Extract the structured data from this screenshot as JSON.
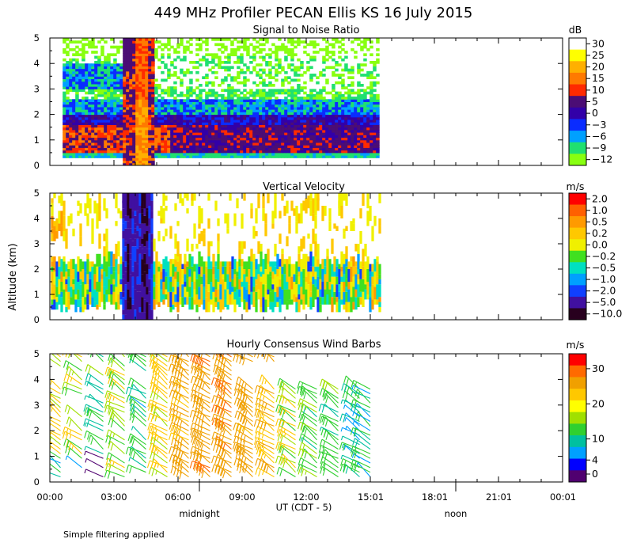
{
  "title": "449 MHz Profiler PECAN Ellis KS 16 July 2015",
  "y_axis_label": "Altitude (km)",
  "x_axis_label": "UT  (CDT - 5)",
  "x_ticks": [
    "00:00",
    "03:00",
    "06:00",
    "09:00",
    "12:00",
    "15:01",
    "18:01",
    "21:01",
    "00:01"
  ],
  "x_tick_hours": [
    0,
    3,
    6,
    9,
    12,
    15.02,
    18.02,
    21.02,
    24.02
  ],
  "markers": [
    {
      "label": "midnight",
      "hour": 7.0
    },
    {
      "label": "noon",
      "hour": 19.0
    }
  ],
  "footnote": "Simple filtering applied",
  "chart_data": [
    {
      "type": "heatmap",
      "title": "Signal to Noise Ratio",
      "unit": "dB",
      "x_range_hours": [
        0,
        24
      ],
      "data_extent_hours": [
        0.6,
        15.4
      ],
      "ylim_km": [
        0,
        5
      ],
      "y_ticks": [
        "0",
        "1",
        "2",
        "3",
        "4",
        "5"
      ],
      "colorbar_labels": [
        "30",
        "25",
        "20",
        "15",
        "10",
        "5",
        "0",
        "−3",
        "−6",
        "−9",
        "−12"
      ],
      "colors": [
        "#ffffff",
        "#ffff00",
        "#ffb000",
        "#ff7a00",
        "#ff2a00",
        "#4b0d75",
        "#3200a8",
        "#0a2cff",
        "#00a0ff",
        "#20e070",
        "#88ff10"
      ],
      "features": [
        {
          "description": "strong return column",
          "hour_range": [
            3.3,
            4.8
          ],
          "km_range": [
            0.3,
            5.0
          ],
          "dB": 10
        },
        {
          "description": "boundary layer high SNR",
          "hour_range": [
            0.6,
            15.4
          ],
          "km_range": [
            0.3,
            1.8
          ],
          "dB": 3
        }
      ]
    },
    {
      "type": "heatmap",
      "title": "Vertical Velocity",
      "unit": "m/s",
      "x_range_hours": [
        0,
        24
      ],
      "data_extent_hours": [
        0.6,
        15.4
      ],
      "ylim_km": [
        0,
        5
      ],
      "y_ticks": [
        "0",
        "1",
        "2",
        "3",
        "4",
        "5"
      ],
      "colorbar_labels": [
        "2.0",
        "1.0",
        "0.5",
        "0.2",
        "0.0",
        "−0.2",
        "−0.5",
        "−1.0",
        "−2.0",
        "−5.0",
        "−10.0"
      ],
      "colors": [
        "#ff0000",
        "#ff6000",
        "#ff9a00",
        "#ffc800",
        "#f0f000",
        "#40e020",
        "#00e0c0",
        "#00a0ff",
        "#1040ff",
        "#4010a0",
        "#28001e"
      ],
      "features": [
        {
          "description": "strong downdraft column",
          "hour_range": [
            3.3,
            4.8
          ],
          "km_range": [
            0.3,
            5.0
          ],
          "m_s": -5.0
        }
      ]
    },
    {
      "type": "barbs",
      "title": "Hourly Consensus Wind Barbs",
      "unit": "m/s",
      "x_range_hours": [
        0,
        24
      ],
      "ylim_km": [
        0,
        5
      ],
      "y_ticks": [
        "0",
        "1",
        "2",
        "3",
        "4",
        "5"
      ],
      "colorbar_labels": [
        "30",
        "20",
        "10",
        "4",
        "0"
      ],
      "colorbar_values": [
        30,
        20,
        10,
        4,
        0
      ],
      "colors": [
        "#ff0000",
        "#ff6a00",
        "#f0a000",
        "#ffc800",
        "#ffff00",
        "#a0e000",
        "#30d030",
        "#00c0a0",
        "#00a0ff",
        "#0000ff",
        "#500070"
      ],
      "hours": [
        0.5,
        1.5,
        2.5,
        3.5,
        4.5,
        5.5,
        6.5,
        7.5,
        8.5,
        9.5,
        10.5,
        11.5,
        12.5,
        13.5,
        14.5,
        15.0
      ],
      "typical_speed_m_s": [
        14,
        12,
        9,
        12,
        8,
        14,
        18,
        20,
        21,
        19,
        16,
        13,
        10,
        9,
        8,
        8
      ]
    }
  ]
}
